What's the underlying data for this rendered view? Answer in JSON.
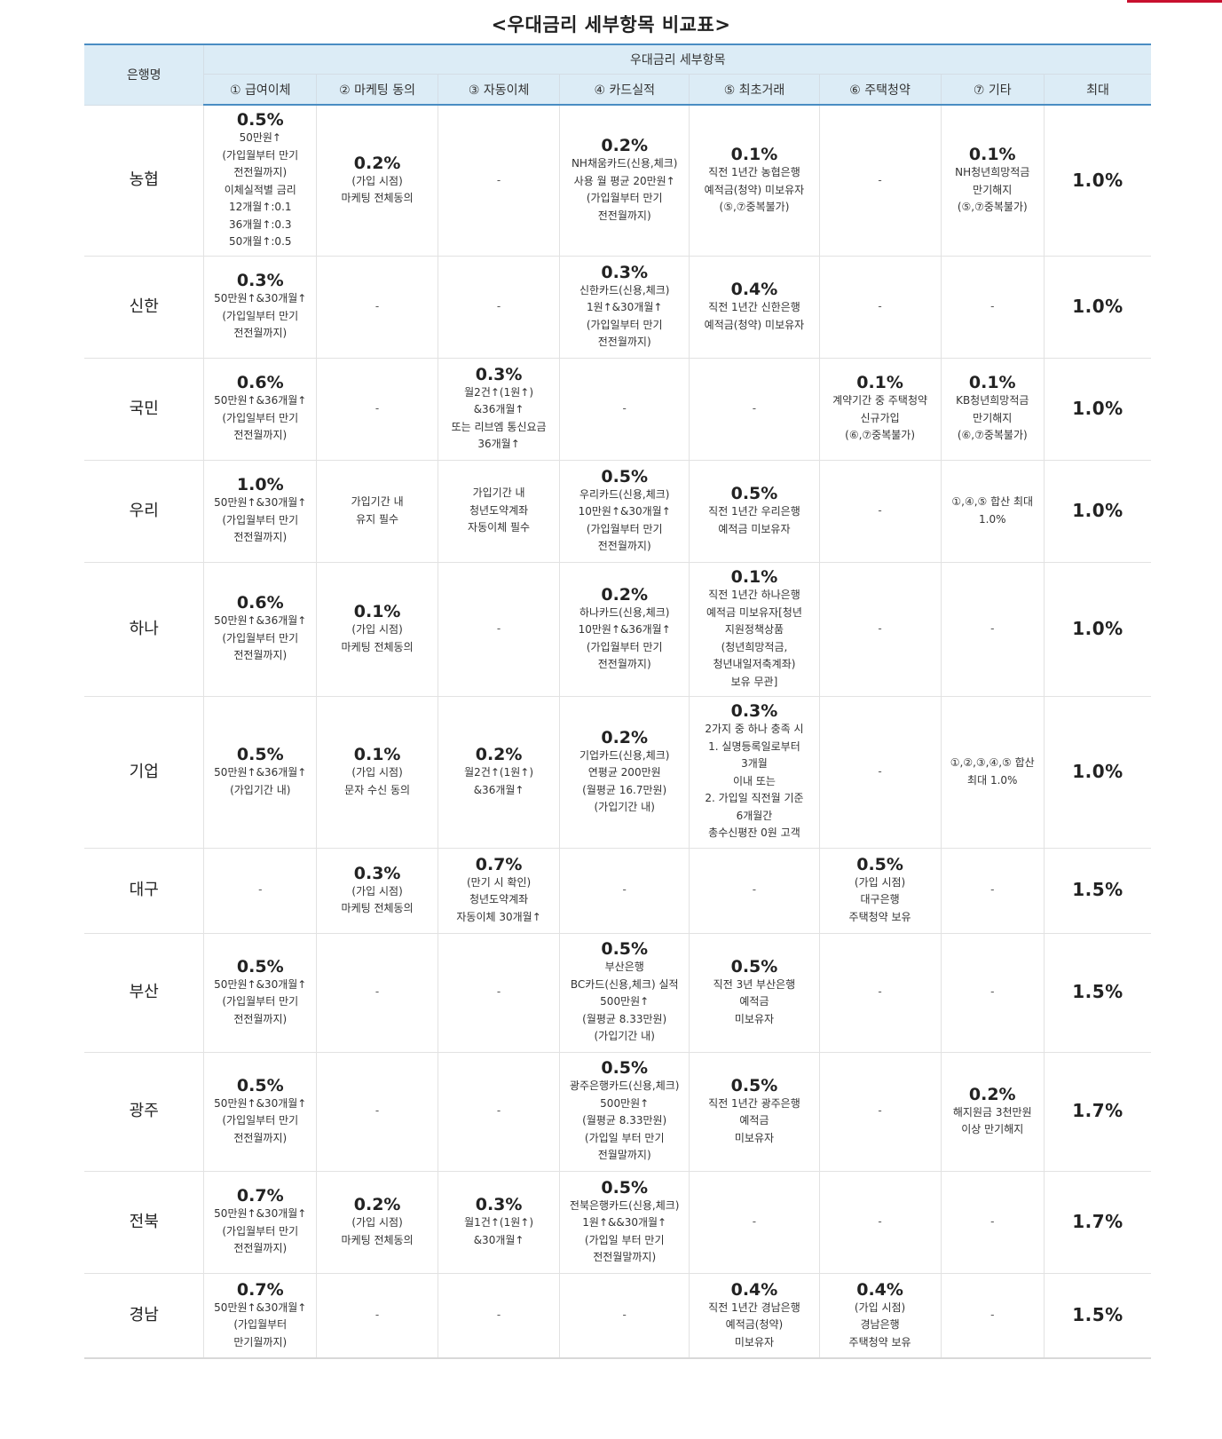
{
  "title": "<우대금리 세부항목 비교표>",
  "accent_color": "#4a8dc3",
  "header": {
    "bank_col": "은행명",
    "group": "우대금리 세부항목",
    "columns": [
      "① 급여이체",
      "② 마케팅 동의",
      "③ 자동이체",
      "④ 카드실적",
      "⑤ 최초거래",
      "⑥ 주택청약",
      "⑦ 기타",
      "최대"
    ]
  },
  "rows": [
    {
      "bank": "농협",
      "max": "1.0%",
      "cells": [
        {
          "rate": "0.5%",
          "lines": [
            "50만원↑",
            "(가입월부터 만기",
            "전전월까지)",
            "이체실적별 금리",
            "12개월↑:0.1",
            "36개월↑:0.3",
            "50개월↑:0.5"
          ]
        },
        {
          "rate": "0.2%",
          "lines": [
            "(가입 시점)",
            "마케팅 전체동의"
          ]
        },
        {
          "rate": "",
          "lines": [
            "-"
          ]
        },
        {
          "rate": "0.2%",
          "lines": [
            "NH채움카드(신용,체크)",
            "사용 월 평균 20만원↑",
            "(가입월부터 만기",
            "전전월까지)"
          ]
        },
        {
          "rate": "0.1%",
          "lines": [
            "직전 1년간 농협은행",
            "예적금(청약) 미보유자",
            "(⑤,⑦중복불가)"
          ]
        },
        {
          "rate": "",
          "lines": [
            "-"
          ]
        },
        {
          "rate": "0.1%",
          "lines": [
            "NH청년희망적금",
            "만기해지",
            "(⑤,⑦중복불가)"
          ]
        }
      ]
    },
    {
      "bank": "신한",
      "max": "1.0%",
      "cells": [
        {
          "rate": "0.3%",
          "lines": [
            "50만원↑&30개월↑",
            "(가입일부터 만기",
            "전전월까지)"
          ]
        },
        {
          "rate": "",
          "lines": [
            "-"
          ]
        },
        {
          "rate": "",
          "lines": [
            "-"
          ]
        },
        {
          "rate": "0.3%",
          "lines": [
            "신한카드(신용,체크)",
            "1원↑&30개월↑",
            "(가입일부터 만기",
            "전전월까지)"
          ]
        },
        {
          "rate": "0.4%",
          "lines": [
            "직전 1년간 신한은행",
            "예적금(청약) 미보유자"
          ]
        },
        {
          "rate": "",
          "lines": [
            "-"
          ]
        },
        {
          "rate": "",
          "lines": [
            "-"
          ]
        }
      ]
    },
    {
      "bank": "국민",
      "max": "1.0%",
      "cells": [
        {
          "rate": "0.6%",
          "lines": [
            "50만원↑&36개월↑",
            "(가입일부터 만기",
            "전전월까지)"
          ]
        },
        {
          "rate": "",
          "lines": [
            "-"
          ]
        },
        {
          "rate": "0.3%",
          "lines": [
            "월2건↑(1원↑)",
            "&36개월↑",
            "또는 리브엠 통신요금",
            "36개월↑"
          ]
        },
        {
          "rate": "",
          "lines": [
            "-"
          ]
        },
        {
          "rate": "",
          "lines": [
            "-"
          ]
        },
        {
          "rate": "0.1%",
          "lines": [
            "계약기간 중 주택청약",
            "신규가입",
            "(⑥,⑦중복불가)"
          ]
        },
        {
          "rate": "0.1%",
          "lines": [
            "KB청년희망적금",
            "만기해지",
            "(⑥,⑦중복불가)"
          ]
        }
      ]
    },
    {
      "bank": "우리",
      "max": "1.0%",
      "cells": [
        {
          "rate": "1.0%",
          "lines": [
            "50만원↑&30개월↑",
            "(가입월부터 만기",
            "전전월까지)"
          ]
        },
        {
          "rate": "",
          "lines": [
            "가입기간 내",
            "유지 필수"
          ]
        },
        {
          "rate": "",
          "lines": [
            "가입기간 내",
            "청년도약계좌",
            "자동이체 필수"
          ]
        },
        {
          "rate": "0.5%",
          "lines": [
            "우리카드(신용,체크)",
            "10만원↑&30개월↑",
            "(가입월부터 만기",
            "전전월까지)"
          ]
        },
        {
          "rate": "0.5%",
          "lines": [
            "직전 1년간 우리은행",
            "예적금 미보유자"
          ]
        },
        {
          "rate": "",
          "lines": [
            "-"
          ]
        },
        {
          "rate": "",
          "lines": [
            "①,④,⑤ 합산 최대",
            "1.0%"
          ]
        }
      ]
    },
    {
      "bank": "하나",
      "max": "1.0%",
      "cells": [
        {
          "rate": "0.6%",
          "lines": [
            "50만원↑&36개월↑",
            "(가입월부터 만기",
            "전전월까지)"
          ]
        },
        {
          "rate": "0.1%",
          "lines": [
            "(가입 시점)",
            "마케팅 전체동의"
          ]
        },
        {
          "rate": "",
          "lines": [
            "-"
          ]
        },
        {
          "rate": "0.2%",
          "lines": [
            "하나카드(신용,체크)",
            "10만원↑&36개월↑",
            "(가입월부터 만기",
            "전전월까지)"
          ]
        },
        {
          "rate": "0.1%",
          "lines": [
            "직전 1년간 하나은행",
            "예적금 미보유자[청년",
            "지원정책상품",
            "(청년희망적금,",
            "청년내일저축계좌)",
            "보유 무관]"
          ]
        },
        {
          "rate": "",
          "lines": [
            "-"
          ]
        },
        {
          "rate": "",
          "lines": [
            "-"
          ]
        }
      ]
    },
    {
      "bank": "기업",
      "max": "1.0%",
      "cells": [
        {
          "rate": "0.5%",
          "lines": [
            "50만원↑&36개월↑",
            "(가입기간 내)"
          ]
        },
        {
          "rate": "0.1%",
          "lines": [
            "(가입 시점)",
            "문자 수신 동의"
          ]
        },
        {
          "rate": "0.2%",
          "lines": [
            "월2건↑(1원↑)",
            "&36개월↑"
          ]
        },
        {
          "rate": "0.2%",
          "lines": [
            "기업카드(신용,체크)",
            "연평균 200만원",
            "(월평균 16.7만원)",
            "(가입기간 내)"
          ]
        },
        {
          "rate": "0.3%",
          "lines": [
            "2가지 중 하나 충족 시",
            "1. 실명등록일로부터",
            "3개월",
            "이내 또는",
            "2. 가입일 직전월 기준",
            "6개월간",
            "총수신평잔 0원 고객"
          ]
        },
        {
          "rate": "",
          "lines": [
            "-"
          ]
        },
        {
          "rate": "",
          "lines": [
            "①,②,③,④,⑤ 합산",
            "최대 1.0%"
          ]
        }
      ]
    },
    {
      "bank": "대구",
      "max": "1.5%",
      "cells": [
        {
          "rate": "",
          "lines": [
            "-"
          ]
        },
        {
          "rate": "0.3%",
          "lines": [
            "(가입 시점)",
            "마케팅 전체동의"
          ]
        },
        {
          "rate": "0.7%",
          "lines": [
            "(만기 시 확인)",
            "청년도약계좌",
            "자동이체 30개월↑"
          ]
        },
        {
          "rate": "",
          "lines": [
            "-"
          ]
        },
        {
          "rate": "",
          "lines": [
            "-"
          ]
        },
        {
          "rate": "0.5%",
          "lines": [
            "(가입 시점)",
            "대구은행",
            "주택청약 보유"
          ]
        },
        {
          "rate": "",
          "lines": [
            "-"
          ]
        }
      ]
    },
    {
      "bank": "부산",
      "max": "1.5%",
      "cells": [
        {
          "rate": "0.5%",
          "lines": [
            "50만원↑&30개월↑",
            "(가입월부터 만기",
            "전전월까지)"
          ]
        },
        {
          "rate": "",
          "lines": [
            "-"
          ]
        },
        {
          "rate": "",
          "lines": [
            "-"
          ]
        },
        {
          "rate": "0.5%",
          "lines": [
            "부산은행",
            "BC카드(신용,체크) 실적",
            "500만원↑",
            "(월평균 8.33만원)",
            "(가입기간 내)"
          ]
        },
        {
          "rate": "0.5%",
          "lines": [
            "직전 3년 부산은행",
            "예적금",
            "미보유자"
          ]
        },
        {
          "rate": "",
          "lines": [
            "-"
          ]
        },
        {
          "rate": "",
          "lines": [
            "-"
          ]
        }
      ]
    },
    {
      "bank": "광주",
      "max": "1.7%",
      "cells": [
        {
          "rate": "0.5%",
          "lines": [
            "50만원↑&30개월↑",
            "(가입일부터 만기",
            "전전월까지)"
          ]
        },
        {
          "rate": "",
          "lines": [
            "-"
          ]
        },
        {
          "rate": "",
          "lines": [
            "-"
          ]
        },
        {
          "rate": "0.5%",
          "lines": [
            "광주은행카드(신용,체크)",
            "500만원↑",
            "(월평균 8.33만원)",
            "(가입일 부터 만기",
            "전월말까지)"
          ]
        },
        {
          "rate": "0.5%",
          "lines": [
            "직전 1년간 광주은행",
            "예적금",
            "미보유자"
          ]
        },
        {
          "rate": "",
          "lines": [
            "-"
          ]
        },
        {
          "rate": "0.2%",
          "lines": [
            "해지원금 3천만원",
            "이상 만기해지"
          ]
        }
      ]
    },
    {
      "bank": "전북",
      "max": "1.7%",
      "cells": [
        {
          "rate": "0.7%",
          "lines": [
            "50만원↑&30개월↑",
            "(가입월부터 만기",
            "전전월까지)"
          ]
        },
        {
          "rate": "0.2%",
          "lines": [
            "(가입 시점)",
            "마케팅 전체동의"
          ]
        },
        {
          "rate": "0.3%",
          "lines": [
            "월1건↑(1원↑)",
            "&30개월↑"
          ]
        },
        {
          "rate": "0.5%",
          "lines": [
            "전북은행카드(신용,체크)",
            "1원↑&&30개월↑",
            "(가입일 부터 만기",
            "전전월말까지)"
          ]
        },
        {
          "rate": "",
          "lines": [
            "-"
          ]
        },
        {
          "rate": "",
          "lines": [
            "-"
          ]
        },
        {
          "rate": "",
          "lines": [
            "-"
          ]
        }
      ]
    },
    {
      "bank": "경남",
      "max": "1.5%",
      "cells": [
        {
          "rate": "0.7%",
          "lines": [
            "50만원↑&30개월↑",
            "(가입월부터",
            "만기월까지)"
          ]
        },
        {
          "rate": "",
          "lines": [
            "-"
          ]
        },
        {
          "rate": "",
          "lines": [
            "-"
          ]
        },
        {
          "rate": "",
          "lines": [
            "-"
          ]
        },
        {
          "rate": "0.4%",
          "lines": [
            "직전 1년간 경남은행",
            "예적금(청약)",
            "미보유자"
          ]
        },
        {
          "rate": "0.4%",
          "lines": [
            "(가입 시점)",
            "경남은행",
            "주택청약 보유"
          ]
        },
        {
          "rate": "",
          "lines": [
            "-"
          ]
        }
      ]
    }
  ]
}
